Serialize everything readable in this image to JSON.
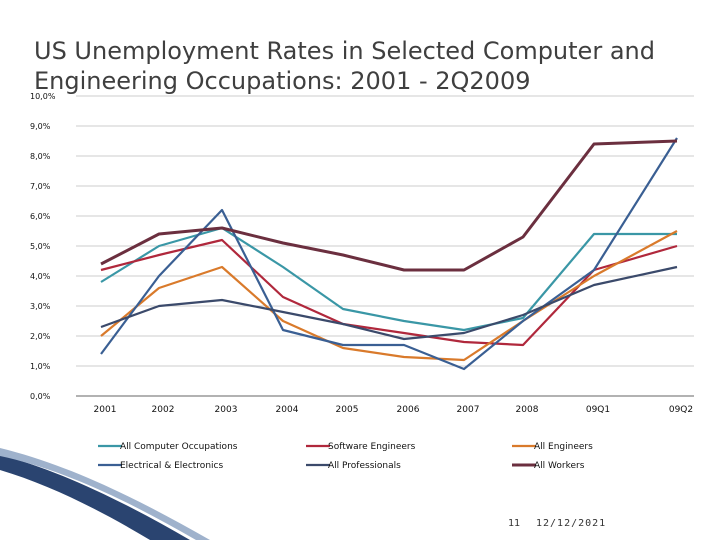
{
  "slide": {
    "page_number": "11",
    "date": "12/12/2021"
  },
  "chart_data": {
    "type": "line",
    "title": "US Unemployment Rates in Selected Computer and Engineering Occupations: 2001 - 2Q2009",
    "xlabel": "",
    "ylabel": "",
    "categories": [
      "2001",
      "2002",
      "2003",
      "2004",
      "2005",
      "2006",
      "2007",
      "2008",
      "09Q1",
      "09Q2"
    ],
    "ylim": [
      0,
      10
    ],
    "yticks": [
      "0,0%",
      "1,0%",
      "2,0%",
      "3,0%",
      "4,0%",
      "5,0%",
      "6,0%",
      "7,0%",
      "8,0%",
      "9,0%",
      "10,0%"
    ],
    "grid": "horizontal",
    "legend_position": "bottom",
    "series": [
      {
        "name": "All Computer Occupations",
        "color": "#3a97a6",
        "values": [
          3.8,
          5.0,
          5.6,
          4.3,
          2.9,
          2.5,
          2.2,
          2.6,
          5.4,
          5.4
        ]
      },
      {
        "name": "Software Engineers",
        "color": "#b0283c",
        "values": [
          4.2,
          4.7,
          5.2,
          3.3,
          2.4,
          2.1,
          1.8,
          1.7,
          4.2,
          5.0
        ]
      },
      {
        "name": "All Engineers",
        "color": "#d97a2b",
        "values": [
          2.0,
          3.6,
          4.3,
          2.5,
          1.6,
          1.3,
          1.2,
          2.5,
          4.0,
          5.5
        ]
      },
      {
        "name": "Electrical & Electronics",
        "color": "#3a5f93",
        "values": [
          1.4,
          4.0,
          6.2,
          2.2,
          1.7,
          1.7,
          0.9,
          2.5,
          4.2,
          8.6
        ]
      },
      {
        "name": "All Professionals",
        "color": "#3b4a6b",
        "values": [
          2.3,
          3.0,
          3.2,
          2.8,
          2.4,
          1.9,
          2.1,
          2.7,
          3.7,
          4.3
        ]
      },
      {
        "name": "All Workers",
        "color": "#6b2f3f",
        "values": [
          4.4,
          5.4,
          5.6,
          5.1,
          4.7,
          4.2,
          4.2,
          5.3,
          8.4,
          8.5
        ]
      }
    ]
  }
}
